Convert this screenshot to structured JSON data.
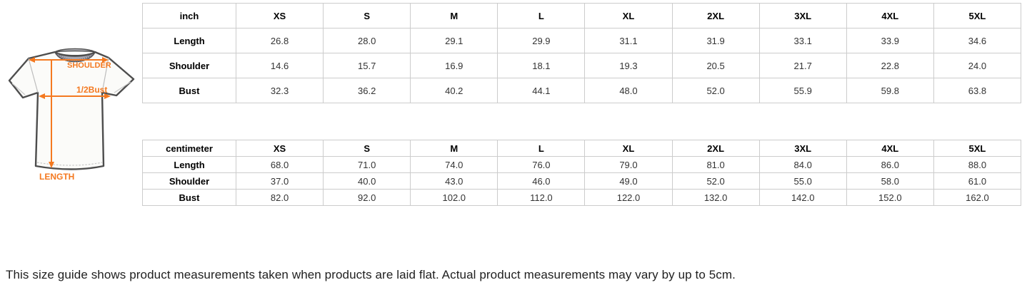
{
  "diagram": {
    "shoulder_label": "SHOULDER",
    "half_bust_label": "1/2Bust",
    "length_label": "LENGTH",
    "accent_color": "#f47920"
  },
  "inch_table": {
    "unit": "inch",
    "sizes": [
      "XS",
      "S",
      "M",
      "L",
      "XL",
      "2XL",
      "3XL",
      "4XL",
      "5XL"
    ],
    "rows": [
      {
        "label": "Length",
        "values": [
          "26.8",
          "28.0",
          "29.1",
          "29.9",
          "31.1",
          "31.9",
          "33.1",
          "33.9",
          "34.6"
        ]
      },
      {
        "label": "Shoulder",
        "values": [
          "14.6",
          "15.7",
          "16.9",
          "18.1",
          "19.3",
          "20.5",
          "21.7",
          "22.8",
          "24.0"
        ]
      },
      {
        "label": "Bust",
        "values": [
          "32.3",
          "36.2",
          "40.2",
          "44.1",
          "48.0",
          "52.0",
          "55.9",
          "59.8",
          "63.8"
        ]
      }
    ]
  },
  "cm_table": {
    "unit": "centimeter",
    "sizes": [
      "XS",
      "S",
      "M",
      "L",
      "XL",
      "2XL",
      "3XL",
      "4XL",
      "5XL"
    ],
    "rows": [
      {
        "label": "Length",
        "values": [
          "68.0",
          "71.0",
          "74.0",
          "76.0",
          "79.0",
          "81.0",
          "84.0",
          "86.0",
          "88.0"
        ]
      },
      {
        "label": "Shoulder",
        "values": [
          "37.0",
          "40.0",
          "43.0",
          "46.0",
          "49.0",
          "52.0",
          "55.0",
          "58.0",
          "61.0"
        ]
      },
      {
        "label": "Bust",
        "values": [
          "82.0",
          "92.0",
          "102.0",
          "112.0",
          "122.0",
          "132.0",
          "142.0",
          "152.0",
          "162.0"
        ]
      }
    ]
  },
  "footnote": "This size guide shows product measurements taken when products are laid flat. Actual product measurements may vary by up to 5cm."
}
